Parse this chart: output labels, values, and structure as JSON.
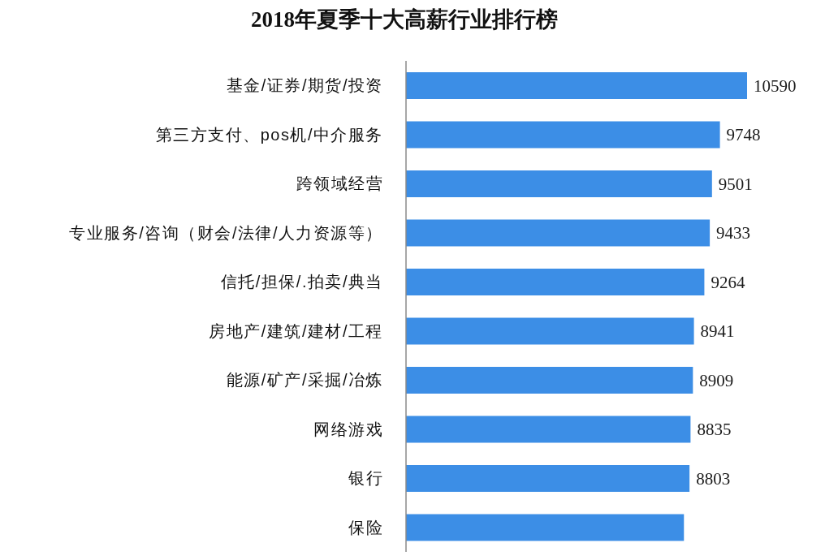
{
  "chart_data": {
    "type": "bar",
    "orientation": "horizontal",
    "title": "2018年夏季十大高薪行业排行榜",
    "categories": [
      "基金/证券/期货/投资",
      "第三方支付、pos机/中介服务",
      "跨领域经营",
      "专业服务/咨询（财会/法律/人力资源等）",
      "信托/担保/.拍卖/典当",
      "房地产/建筑/建材/工程",
      "能源/矿产/采掘/冶炼",
      "网络游戏",
      "银行",
      "保险"
    ],
    "values": [
      10590,
      9748,
      9501,
      9433,
      9264,
      8941,
      8909,
      8835,
      8803,
      8630
    ],
    "value_labels": [
      "10590",
      "9748",
      "9501",
      "9433",
      "9264",
      "8941",
      "8909",
      "8835",
      "8803",
      null
    ],
    "color": "#3c8ee6",
    "tick_labels": "y"
  }
}
